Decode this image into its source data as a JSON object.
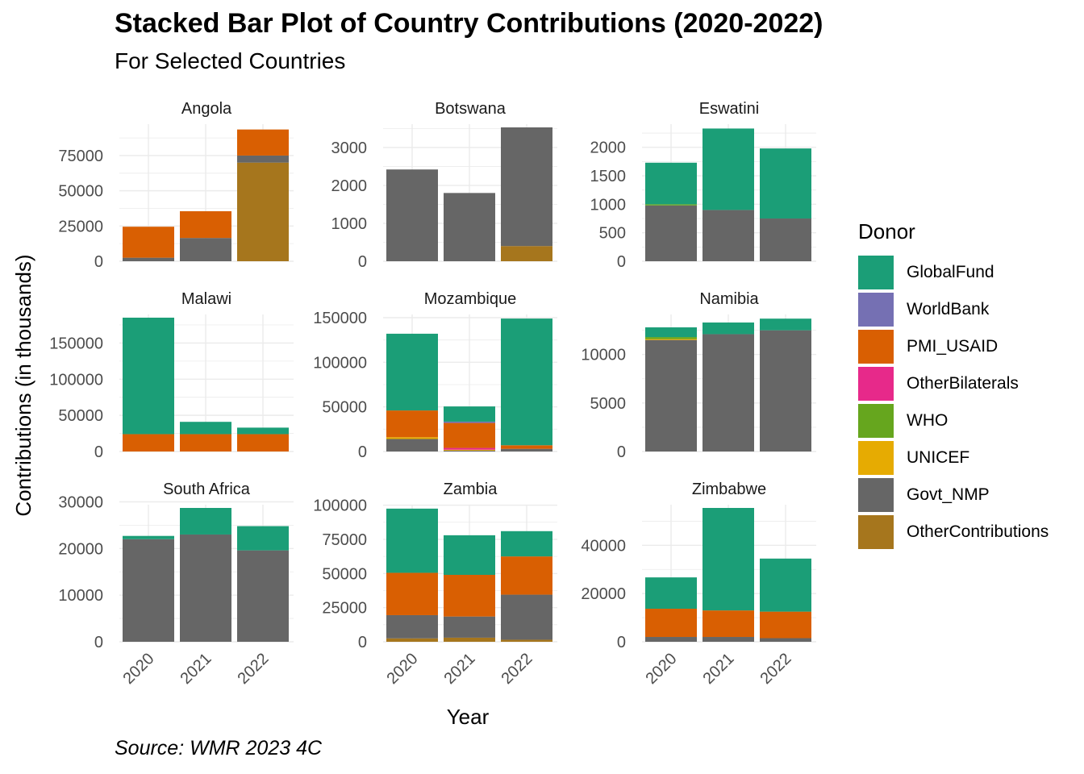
{
  "title": "Stacked Bar Plot of Country Contributions (2020-2022)",
  "subtitle": "For Selected Countries",
  "caption": "Source: WMR 2023 4C",
  "chart_data": {
    "type": "bar",
    "stacked": true,
    "layout": "facet-grid 3x3, free y scales",
    "xlabel": "Year",
    "ylabel": "Contributions (in thousands)",
    "legend_title": "Donor",
    "legend_position": "right",
    "grid": true,
    "categories": [
      "2020",
      "2021",
      "2022"
    ],
    "donors": [
      "GlobalFund",
      "WorldBank",
      "PMI_USAID",
      "OtherBilaterals",
      "WHO",
      "UNICEF",
      "Govt_NMP",
      "OtherContributions"
    ],
    "colors": {
      "GlobalFund": "#1b9e77",
      "WorldBank": "#7570b3",
      "PMI_USAID": "#d95f02",
      "OtherBilaterals": "#e7298a",
      "WHO": "#66a61e",
      "UNICEF": "#e6ab02",
      "Govt_NMP": "#666666",
      "OtherContributions": "#a6761d"
    },
    "stack_order_bottom_to_top": [
      "OtherContributions",
      "Govt_NMP",
      "UNICEF",
      "WHO",
      "OtherBilaterals",
      "PMI_USAID",
      "WorldBank",
      "GlobalFund"
    ],
    "panels": [
      {
        "country": "Angola",
        "ylim": [
          0,
          95000
        ],
        "yticks": [
          0,
          25000,
          50000,
          75000
        ],
        "series": {
          "GlobalFund": [
            0,
            0,
            0
          ],
          "PMI_USAID": [
            22000,
            19000,
            18500
          ],
          "Govt_NMP": [
            2500,
            16500,
            5000
          ],
          "OtherContributions": [
            0,
            0,
            70000
          ]
        }
      },
      {
        "country": "Botswana",
        "ylim": [
          0,
          3530
        ],
        "yticks": [
          0,
          1000,
          2000,
          3000
        ],
        "series": {
          "Govt_NMP": [
            2420,
            1800,
            3130
          ],
          "OtherContributions": [
            0,
            0,
            400
          ]
        }
      },
      {
        "country": "Eswatini",
        "ylim": [
          0,
          2350
        ],
        "yticks": [
          0,
          500,
          1000,
          1500,
          2000
        ],
        "series": {
          "GlobalFund": [
            730,
            1430,
            1230
          ],
          "WHO": [
            20,
            0,
            0
          ],
          "Govt_NMP": [
            980,
            900,
            750
          ]
        }
      },
      {
        "country": "Malawi",
        "ylim": [
          0,
          185000
        ],
        "yticks": [
          0,
          50000,
          100000,
          150000
        ],
        "series": {
          "GlobalFund": [
            161000,
            17000,
            9000
          ],
          "PMI_USAID": [
            24000,
            24000,
            24000
          ],
          "Govt_NMP": [
            0,
            0,
            0
          ]
        }
      },
      {
        "country": "Mozambique",
        "ylim": [
          0,
          150000
        ],
        "yticks": [
          0,
          50000,
          100000,
          150000
        ],
        "series": {
          "GlobalFund": [
            86000,
            17000,
            142000
          ],
          "WorldBank": [
            0,
            1500,
            0
          ],
          "PMI_USAID": [
            30000,
            28000,
            4000
          ],
          "OtherBilaterals": [
            0,
            2000,
            0
          ],
          "UNICEF": [
            2000,
            1000,
            0
          ],
          "Govt_NMP": [
            14000,
            1000,
            3000
          ]
        }
      },
      {
        "country": "Namibia",
        "ylim": [
          0,
          13800
        ],
        "yticks": [
          0,
          5000,
          10000
        ],
        "series": {
          "GlobalFund": [
            1000,
            1200,
            1200
          ],
          "WHO": [
            200,
            0,
            0
          ],
          "UNICEF": [
            100,
            0,
            0
          ],
          "Govt_NMP": [
            11500,
            12100,
            12500
          ]
        }
      },
      {
        "country": "South Africa",
        "ylim": [
          0,
          28700
        ],
        "yticks": [
          0,
          10000,
          20000,
          30000
        ],
        "series": {
          "GlobalFund": [
            700,
            5700,
            5200
          ],
          "Govt_NMP": [
            22000,
            23000,
            19600
          ]
        }
      },
      {
        "country": "Zambia",
        "ylim": [
          0,
          98000
        ],
        "yticks": [
          0,
          25000,
          50000,
          75000,
          100000
        ],
        "series": {
          "GlobalFund": [
            47000,
            29000,
            18500
          ],
          "PMI_USAID": [
            31000,
            30500,
            28000
          ],
          "Govt_NMP": [
            17000,
            15500,
            33000
          ],
          "OtherContributions": [
            2500,
            3000,
            1500
          ]
        }
      },
      {
        "country": "Zimbabwe",
        "ylim": [
          0,
          55500
        ],
        "yticks": [
          0,
          20000,
          40000
        ],
        "series": {
          "GlobalFund": [
            13000,
            42500,
            22000
          ],
          "PMI_USAID": [
            11700,
            11000,
            11000
          ],
          "Govt_NMP": [
            2000,
            2000,
            1500
          ]
        }
      }
    ]
  }
}
